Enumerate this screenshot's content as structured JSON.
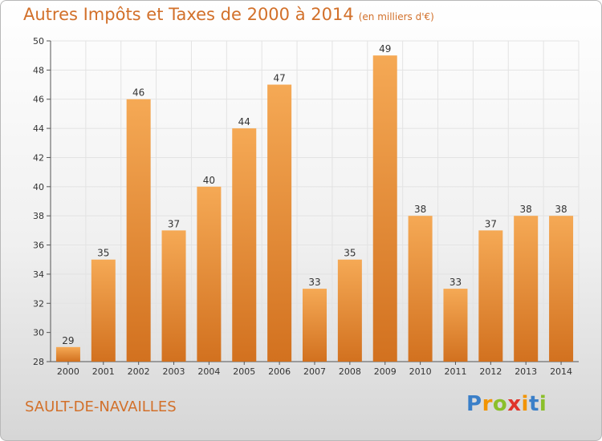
{
  "header": {
    "title": "Autres Impôts et Taxes de 2000 à 2014",
    "subtitle": "(en milliers d'€)"
  },
  "footer": {
    "commune": "SAULT-DE-NAVAILLES",
    "logo_letters": [
      {
        "char": "P",
        "color": "#3a7fc8"
      },
      {
        "char": "r",
        "color": "#f29400"
      },
      {
        "char": "o",
        "color": "#8bbf2a"
      },
      {
        "char": "x",
        "color": "#e0352b"
      },
      {
        "char": "i",
        "color": "#f29400"
      },
      {
        "char": "t",
        "color": "#3a7fc8"
      },
      {
        "char": "i",
        "color": "#8bbf2a"
      }
    ]
  },
  "chart_data": {
    "type": "bar",
    "title": "Autres Impôts et Taxes de 2000 à 2014",
    "subtitle": "(en milliers d'€)",
    "categories": [
      "2000",
      "2001",
      "2002",
      "2003",
      "2004",
      "2005",
      "2006",
      "2007",
      "2008",
      "2009",
      "2010",
      "2011",
      "2012",
      "2013",
      "2014"
    ],
    "values": [
      29,
      35,
      46,
      37,
      40,
      44,
      47,
      33,
      35,
      49,
      38,
      33,
      37,
      38,
      38
    ],
    "ylim": [
      28,
      50
    ],
    "yticks": [
      28,
      30,
      32,
      34,
      36,
      38,
      40,
      42,
      44,
      46,
      48,
      50
    ],
    "grid": true,
    "colors": {
      "bar_light": "#f5a955",
      "bar_dark": "#d2711f",
      "accent": "#d2702a"
    }
  }
}
